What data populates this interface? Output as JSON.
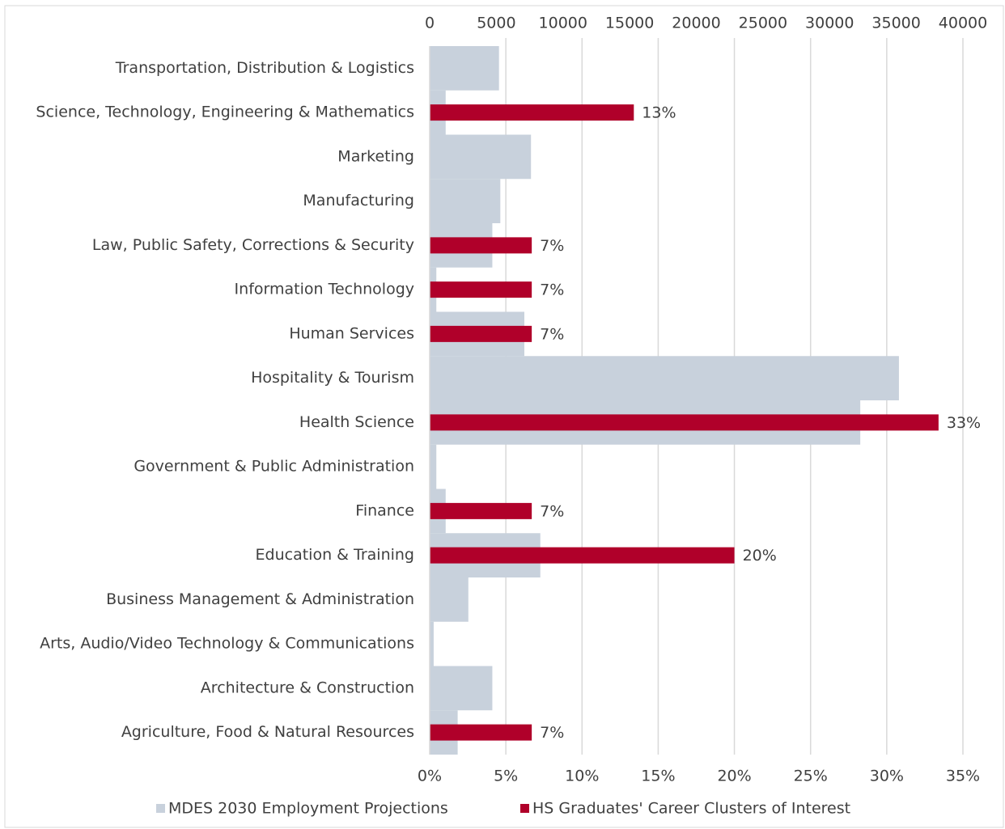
{
  "chart_data": {
    "type": "bar",
    "orientation": "horizontal",
    "categories": [
      "Transportation, Distribution & Logistics",
      "Science, Technology, Engineering & Mathematics",
      "Marketing",
      "Manufacturing",
      "Law, Public Safety, Corrections & Security",
      "Information Technology",
      "Human Services",
      "Hospitality & Tourism",
      "Health Science",
      "Government & Public Administration",
      "Finance",
      "Education & Training",
      "Business  Management & Administration",
      "Arts, Audio/Video Technology & Communications",
      "Architecture & Construction",
      "Agriculture, Food & Natural Resources"
    ],
    "series": [
      {
        "name": "MDES 2030 Employment Projections",
        "color": "#c8d1dc",
        "axis": "x2",
        "values": [
          5200,
          1200,
          7600,
          5300,
          4700,
          500,
          7100,
          35200,
          32300,
          500,
          1200,
          8300,
          2900,
          300,
          4700,
          2100
        ]
      },
      {
        "name": "HS Graduates' Career Clusters of Interest",
        "color": "#b0002a",
        "values": [
          null,
          13.4,
          null,
          null,
          6.7,
          6.7,
          6.7,
          null,
          33.4,
          null,
          6.7,
          20,
          null,
          null,
          null,
          6.7
        ],
        "value_labels": [
          null,
          "13%",
          null,
          null,
          "7%",
          "7%",
          "7%",
          null,
          "33%",
          null,
          "7%",
          "20%",
          null,
          null,
          null,
          "7%"
        ]
      }
    ],
    "xlim": [
      0,
      35
    ],
    "xticks": [
      {
        "value": 0,
        "label": "0%"
      },
      {
        "value": 5,
        "label": "5%"
      },
      {
        "value": 10,
        "label": "10%"
      },
      {
        "value": 15,
        "label": "15%"
      },
      {
        "value": 20,
        "label": "20%"
      },
      {
        "value": 25,
        "label": "25%"
      },
      {
        "value": 30,
        "label": "30%"
      },
      {
        "value": 35,
        "label": "35%"
      }
    ],
    "x2lim": [
      0,
      40000
    ],
    "x2ticks": [
      0,
      5000,
      10000,
      15000,
      20000,
      25000,
      30000,
      35000,
      40000
    ],
    "grid": true,
    "legend": "bottom"
  }
}
